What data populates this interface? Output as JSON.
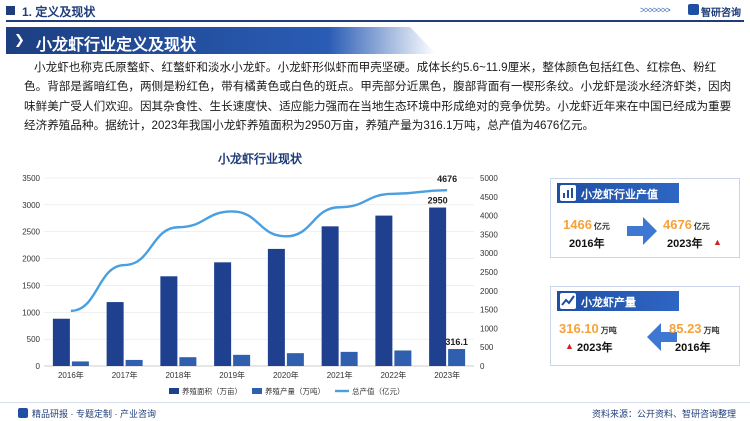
{
  "header": {
    "section_title": "1. 定义及现状",
    "logo_text": "智研咨询",
    "arrows": ">>>>>>>"
  },
  "banner": {
    "chevron": "❯",
    "title": "小龙虾行业定义及现状"
  },
  "paragraph": "小龙虾也称克氏原螯虾、红螯虾和淡水小龙虾。小龙虾形似虾而甲壳坚硬。成体长约5.6~11.9厘米，整体颜色包括红色、红棕色、粉红色。背部是酱暗红色，两侧是粉红色，带有橘黄色或白色的斑点。甲壳部分近黑色，腹部背面有一楔形条纹。小龙虾是淡水经济虾类，因肉味鲜美广受人们欢迎。因其杂食性、生长速度快、适应能力强而在当地生态环境中形成绝对的竞争优势。小龙虾近年来在中国已经成为重要经济养殖品种。据统计，2023年我国小龙虾养殖面积为2950万亩，养殖产量为316.1万吨，总产值为4676亿元。",
  "chart_data": {
    "type": "bar",
    "title": "小龙虾行业现状",
    "categories": [
      "2016年",
      "2017年",
      "2018年",
      "2019年",
      "2020年",
      "2021年",
      "2022年",
      "2023年"
    ],
    "y_left": {
      "ticks": [
        "0",
        "500",
        "1000",
        "1500",
        "2000",
        "2500",
        "3000",
        "3500"
      ],
      "range": [
        0,
        3500
      ]
    },
    "y_right": {
      "ticks": [
        "0",
        "500",
        "1000",
        "1500",
        "2000",
        "2500",
        "3000",
        "3500",
        "4000",
        "4500",
        "5000"
      ],
      "range": [
        0,
        5000
      ]
    },
    "series": [
      {
        "name": "养殖面积（万亩）",
        "type": "bar",
        "axis": "left",
        "color": "#1f3f8f",
        "values": [
          880,
          1190,
          1670,
          1930,
          2180,
          2600,
          2800,
          2950
        ]
      },
      {
        "name": "养殖产量（万吨）",
        "type": "bar",
        "axis": "left",
        "color": "#2f5fae",
        "values": [
          85,
          113,
          164,
          208,
          239,
          263,
          289,
          316.1
        ]
      },
      {
        "name": "总产值（亿元）",
        "type": "line",
        "axis": "right",
        "color": "#4a9fe0",
        "values": [
          1466,
          2685,
          3690,
          4110,
          3448,
          4222,
          4580,
          4676
        ]
      }
    ],
    "data_labels": [
      {
        "series": 0,
        "index": 7,
        "text": "2950"
      },
      {
        "series": 1,
        "index": 7,
        "text": "316.1"
      },
      {
        "series": 2,
        "index": 7,
        "text": "4676"
      }
    ],
    "legend_position": "bottom"
  },
  "cards": [
    {
      "title": "小龙虾行业产值",
      "left_value": "1466",
      "left_unit": "亿元",
      "left_year": "2016年",
      "right_value": "4676",
      "right_unit": "亿元",
      "right_year": "2023年",
      "up_marker": "▲"
    },
    {
      "title": "小龙虾产量",
      "left_value": "316.10",
      "left_unit": "万吨",
      "left_year": "2023年",
      "right_value": "85.23",
      "right_unit": "万吨",
      "right_year": "2016年",
      "up_marker": "▲"
    }
  ],
  "footer": {
    "left_text": "精品研报 · 专题定制 · 产业咨询",
    "right_text": "资料来源：公开资料、智研咨询整理"
  }
}
